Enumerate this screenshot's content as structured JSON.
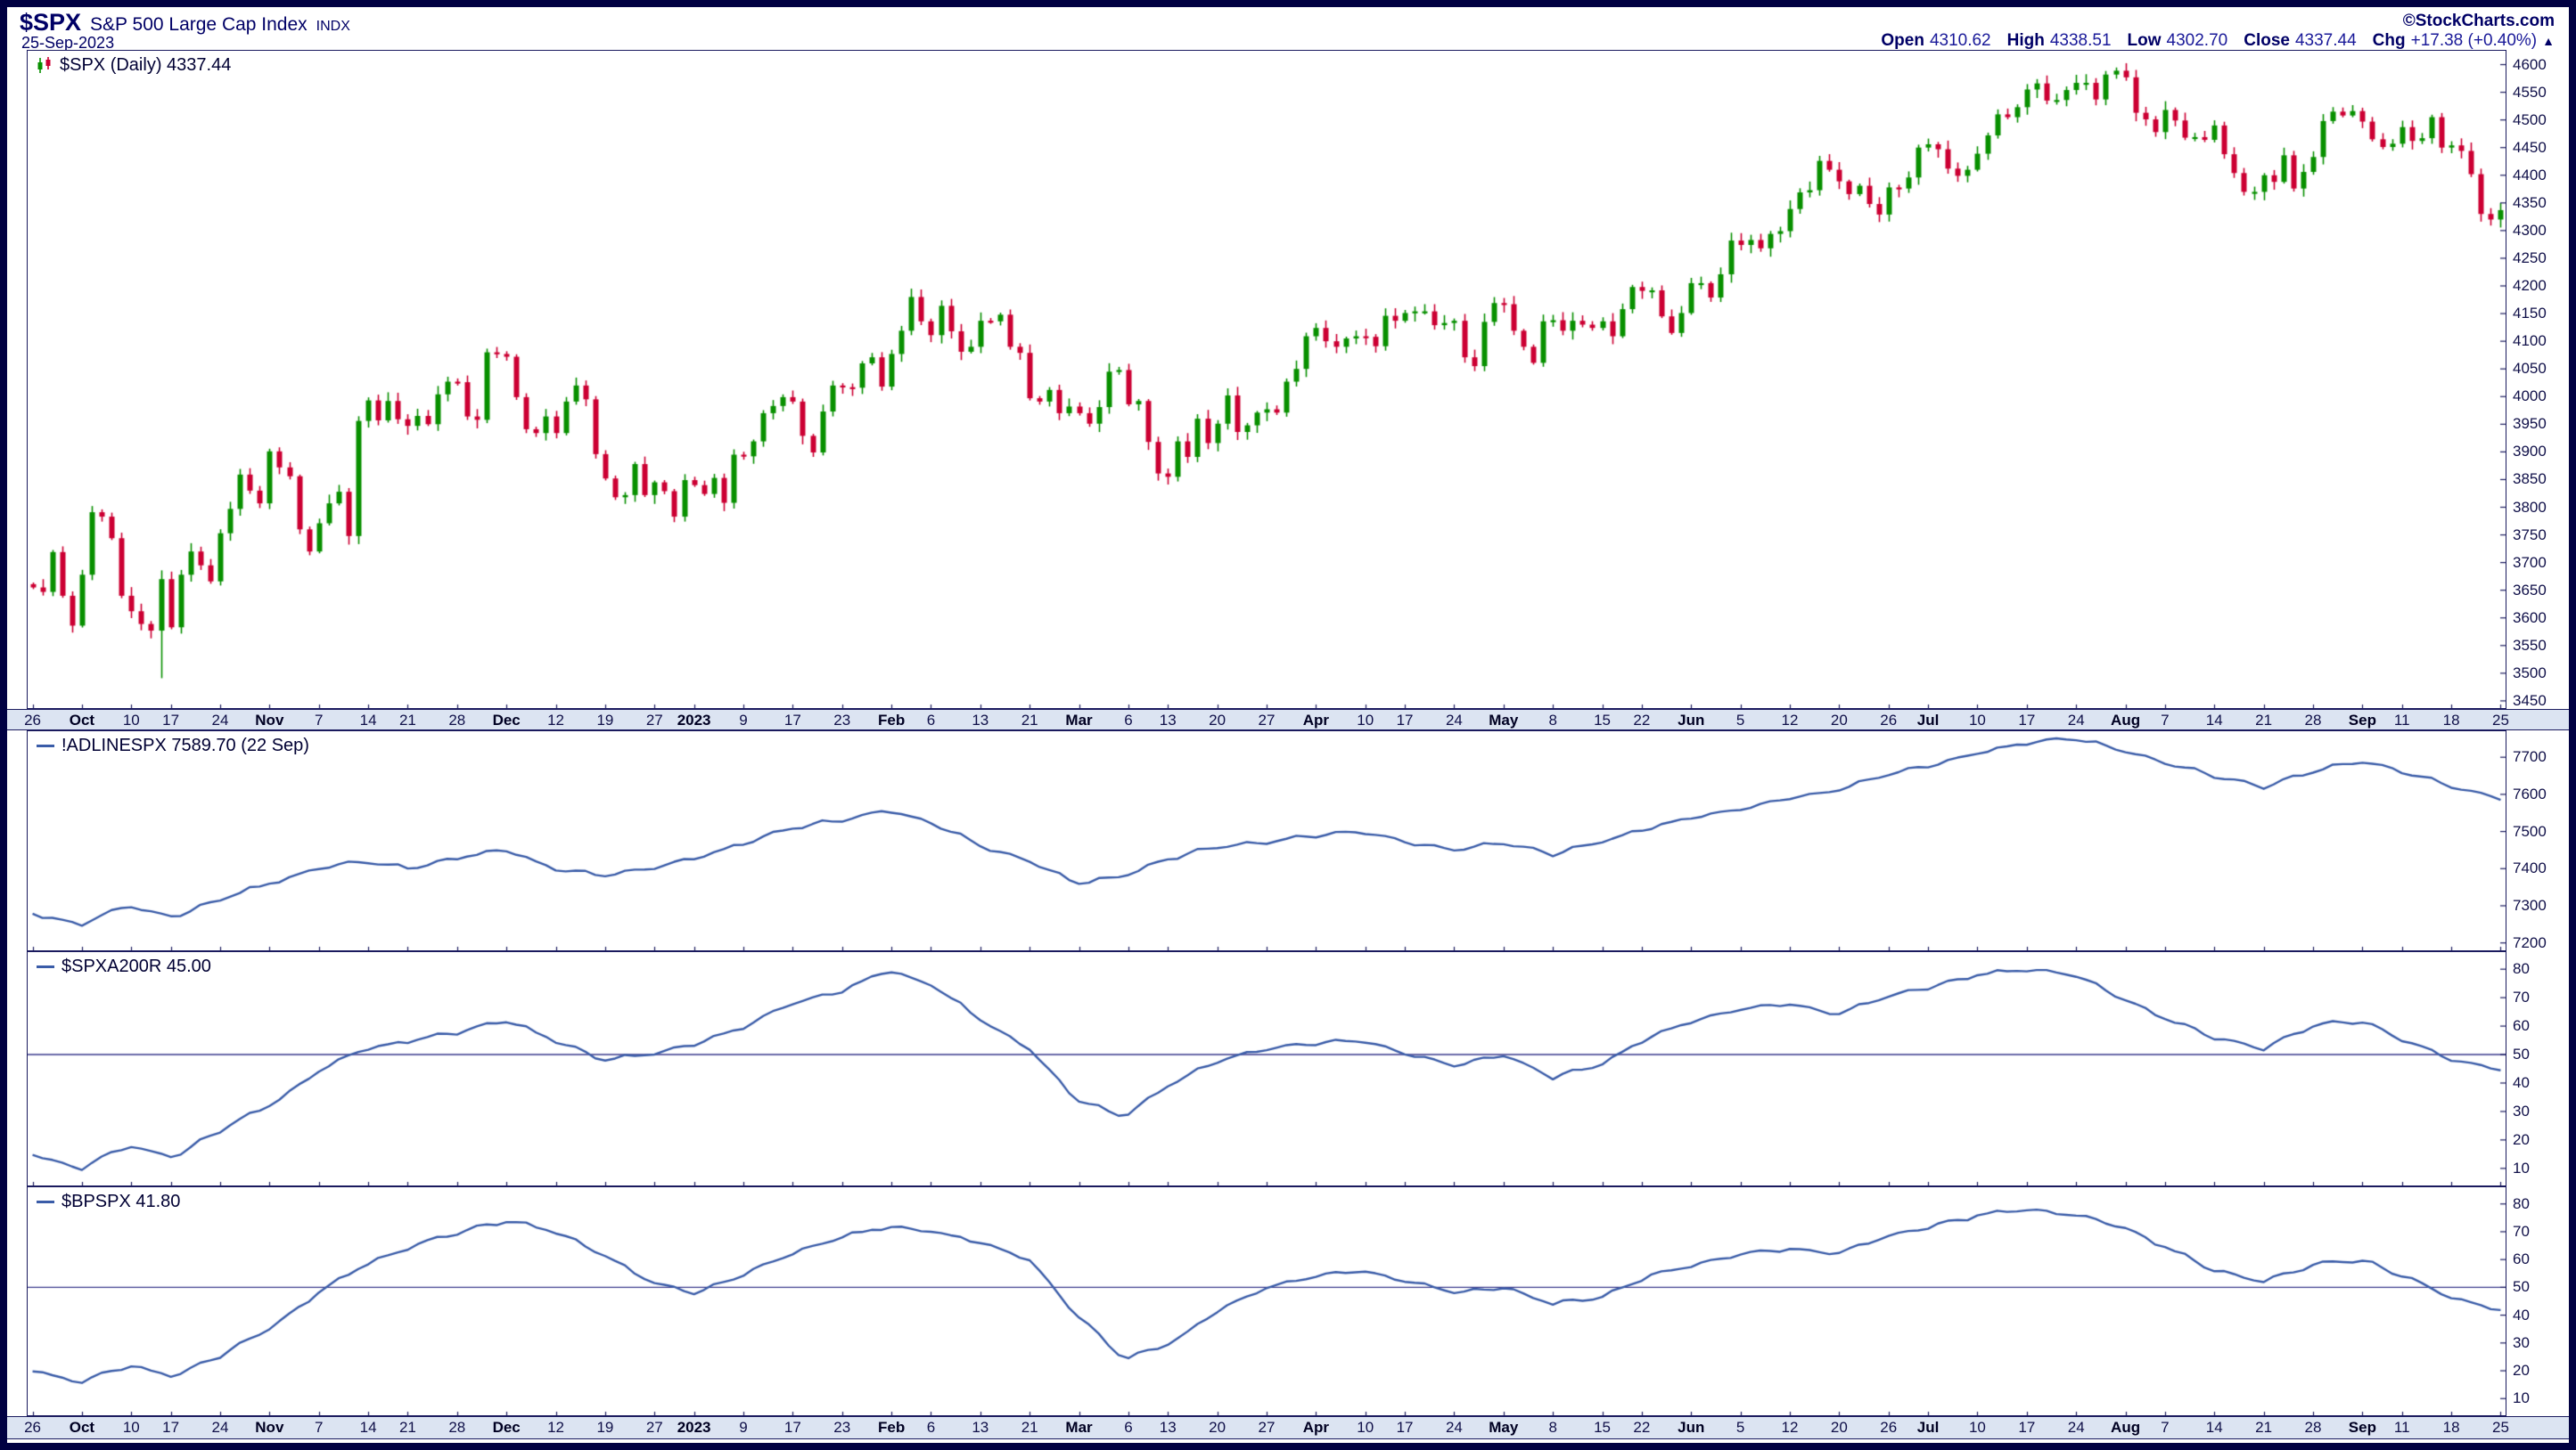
{
  "header": {
    "symbol": "$SPX",
    "name": "S&P 500 Large Cap Index",
    "exchange": "INDX",
    "date": "25-Sep-2023",
    "source": "©StockCharts.com"
  },
  "quote": {
    "open_label": "Open",
    "open": "4310.62",
    "high_label": "High",
    "high": "4338.51",
    "low_label": "Low",
    "low": "4302.70",
    "close_label": "Close",
    "close": "4337.44",
    "chg_label": "Chg",
    "chg": "+17.38 (+0.40%)",
    "direction": "▲"
  },
  "colors": {
    "frame": "#000042",
    "navy": "#000066",
    "axis": "#101049",
    "border": "#1A1A5E",
    "strip": "#DCE4F2",
    "up": "#089000",
    "down": "#CC0033",
    "line": "#3A5CA8",
    "hline": "#3A3A8C"
  },
  "x_axis": {
    "labels": [
      "26",
      "Oct",
      "10",
      "17",
      "24",
      "Nov",
      "7",
      "14",
      "21",
      "28",
      "Dec",
      "12",
      "19",
      "27",
      "2023",
      "9",
      "17",
      "23",
      "Feb",
      "6",
      "13",
      "21",
      "Mar",
      "6",
      "13",
      "20",
      "27",
      "Apr",
      "10",
      "17",
      "24",
      "May",
      "8",
      "15",
      "22",
      "Jun",
      "5",
      "12",
      "20",
      "26",
      "Jul",
      "10",
      "17",
      "24",
      "Aug",
      "7",
      "14",
      "21",
      "28",
      "Sep",
      "11",
      "18",
      "25"
    ]
  },
  "chart_data": [
    {
      "type": "candlestick",
      "title": "$SPX (Daily) 4337.44",
      "symbol": "$SPX",
      "timeframe": "Daily",
      "last": 4337.44,
      "ylim": [
        3437,
        4625
      ],
      "yticks": [
        4600,
        4550,
        4500,
        4450,
        4400,
        4350,
        4300,
        4250,
        4200,
        4150,
        4100,
        4050,
        4000,
        3950,
        3900,
        3850,
        3800,
        3750,
        3700,
        3650,
        3600,
        3550,
        3500,
        3450
      ],
      "closes": [
        3655,
        3647,
        3719,
        3640,
        3586,
        3678,
        3791,
        3783,
        3744,
        3640,
        3612,
        3589,
        3577,
        3670,
        3583,
        3678,
        3720,
        3695,
        3666,
        3753,
        3797,
        3859,
        3830,
        3807,
        3901,
        3872,
        3856,
        3760,
        3720,
        3771,
        3807,
        3828,
        3748,
        3956,
        3993,
        3957,
        3992,
        3959,
        3947,
        3965,
        3950,
        4004,
        4027,
        4026,
        3964,
        3958,
        4080,
        4077,
        4072,
        3999,
        3941,
        3934,
        3964,
        3934,
        3991,
        4020,
        3995,
        3896,
        3852,
        3818,
        3822,
        3878,
        3822,
        3845,
        3829,
        3783,
        3849,
        3840,
        3824,
        3853,
        3808,
        3895,
        3892,
        3919,
        3970,
        3983,
        3999,
        3991,
        3929,
        3899,
        3973,
        4020,
        4017,
        4016,
        4060,
        4071,
        4018,
        4077,
        4119,
        4180,
        4136,
        4111,
        4164,
        4118,
        4081,
        4090,
        4137,
        4136,
        4148,
        4090,
        4079,
        3997,
        3991,
        4012,
        3970,
        3982,
        3970,
        3951,
        3981,
        4045,
        4048,
        3986,
        3992,
        3918,
        3861,
        3855,
        3919,
        3891,
        3960,
        3916,
        3951,
        4002,
        3936,
        3948,
        3971,
        3977,
        3971,
        4027,
        4050,
        4109,
        4124,
        4100,
        4090,
        4105,
        4109,
        4108,
        4091,
        4146,
        4137,
        4151,
        4154,
        4154,
        4129,
        4133,
        4137,
        4071,
        4055,
        4135,
        4169,
        4167,
        4119,
        4090,
        4061,
        4136,
        4138,
        4119,
        4137,
        4130,
        4124,
        4136,
        4109,
        4158,
        4198,
        4191,
        4192,
        4145,
        4115,
        4151,
        4205,
        4205,
        4179,
        4221,
        4282,
        4274,
        4283,
        4268,
        4294,
        4299,
        4339,
        4369,
        4373,
        4426,
        4410,
        4389,
        4366,
        4381,
        4348,
        4329,
        4378,
        4376,
        4396,
        4450,
        4456,
        4447,
        4412,
        4399,
        4410,
        4439,
        4472,
        4510,
        4505,
        4523,
        4555,
        4566,
        4535,
        4536,
        4554,
        4567,
        4567,
        4537,
        4582,
        4589,
        4577,
        4513,
        4501,
        4478,
        4518,
        4499,
        4468,
        4469,
        4464,
        4490,
        4438,
        4404,
        4370,
        4370,
        4400,
        4388,
        4436,
        4376,
        4406,
        4433,
        4498,
        4515,
        4508,
        4516,
        4497,
        4465,
        4451,
        4457,
        4487,
        4462,
        4467,
        4505,
        4450,
        4454,
        4444,
        4402,
        4330,
        4320,
        4337
      ],
      "low_overrides": {
        "13": 3491
      }
    },
    {
      "type": "line",
      "title": "!ADLINESPX 7589.70 (22 Sep)",
      "last": 7589.7,
      "ylim": [
        7180,
        7770
      ],
      "yticks": [
        7700,
        7600,
        7500,
        7400,
        7300,
        7200
      ],
      "values": [
        7280,
        7250,
        7300,
        7270,
        7320,
        7360,
        7400,
        7420,
        7400,
        7430,
        7450,
        7400,
        7380,
        7400,
        7430,
        7470,
        7510,
        7530,
        7560,
        7520,
        7460,
        7420,
        7360,
        7380,
        7430,
        7460,
        7470,
        7490,
        7500,
        7470,
        7450,
        7470,
        7440,
        7470,
        7510,
        7540,
        7560,
        7590,
        7610,
        7650,
        7680,
        7710,
        7740,
        7750,
        7720,
        7680,
        7650,
        7620,
        7660,
        7690,
        7660,
        7620,
        7590
      ]
    },
    {
      "type": "line",
      "title": "$SPXA200R 45.00",
      "last": 45.0,
      "ylim": [
        4,
        86
      ],
      "yticks": [
        80,
        70,
        60,
        50,
        40,
        30,
        20,
        10
      ],
      "hline": 50,
      "values": [
        15,
        10,
        18,
        14,
        24,
        32,
        44,
        52,
        55,
        58,
        62,
        55,
        48,
        50,
        54,
        60,
        68,
        72,
        80,
        74,
        62,
        52,
        34,
        28,
        40,
        48,
        52,
        54,
        55,
        50,
        46,
        50,
        42,
        46,
        56,
        62,
        66,
        68,
        64,
        70,
        74,
        78,
        80,
        78,
        70,
        62,
        56,
        52,
        60,
        62,
        55,
        48,
        45
      ]
    },
    {
      "type": "line",
      "title": "$BPSPX 41.80",
      "last": 41.8,
      "ylim": [
        4,
        86
      ],
      "yticks": [
        80,
        70,
        60,
        50,
        40,
        30,
        20,
        10
      ],
      "hline": 50,
      "values": [
        20,
        16,
        22,
        18,
        26,
        35,
        48,
        58,
        65,
        70,
        74,
        70,
        62,
        52,
        48,
        55,
        62,
        68,
        72,
        70,
        66,
        60,
        40,
        24,
        30,
        42,
        50,
        54,
        56,
        52,
        48,
        50,
        44,
        46,
        54,
        58,
        62,
        64,
        62,
        68,
        72,
        76,
        78,
        76,
        72,
        64,
        56,
        52,
        58,
        60,
        54,
        46,
        42
      ]
    }
  ]
}
